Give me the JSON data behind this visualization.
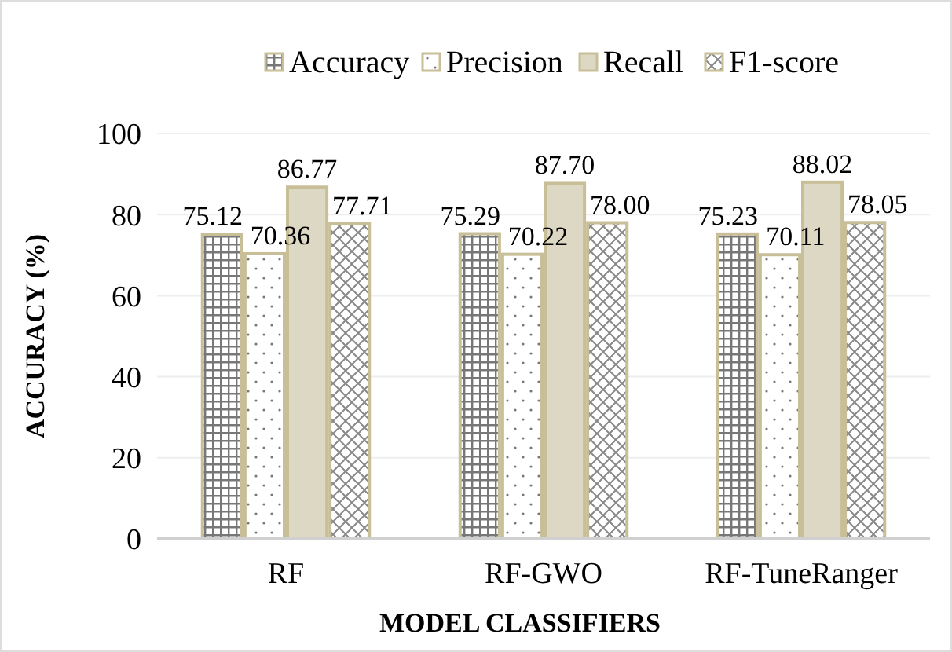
{
  "chart_data": {
    "type": "bar",
    "xlabel": "MODEL CLASSIFIERS",
    "ylabel": "ACCURACY (%)",
    "categories": [
      "RF",
      "RF-GWO",
      "RF-TuneRanger"
    ],
    "series": [
      {
        "name": "Accuracy",
        "color": "#c8bf98",
        "values": [
          75.12,
          75.29,
          75.23
        ],
        "value_labels": [
          "75.12",
          "75.29",
          "75.23"
        ]
      },
      {
        "name": "Precision",
        "color": "#c8bf98",
        "values": [
          70.36,
          70.22,
          70.11
        ],
        "value_labels": [
          "70.36",
          "70.22",
          "70.11"
        ]
      },
      {
        "name": "Recall",
        "color": "#c8bf98",
        "values": [
          86.77,
          87.7,
          88.02
        ],
        "value_labels": [
          "86.77",
          "87.70",
          "88.02"
        ]
      },
      {
        "name": "F1-score",
        "color": "#c8bf98",
        "values": [
          77.71,
          78.0,
          78.05
        ],
        "value_labels": [
          "77.71",
          "78.00",
          "78.05"
        ]
      }
    ],
    "ylim": [
      0,
      100
    ],
    "yticks": [
      0,
      20,
      40,
      60,
      80,
      100
    ],
    "grid": "y",
    "legend": "top"
  }
}
